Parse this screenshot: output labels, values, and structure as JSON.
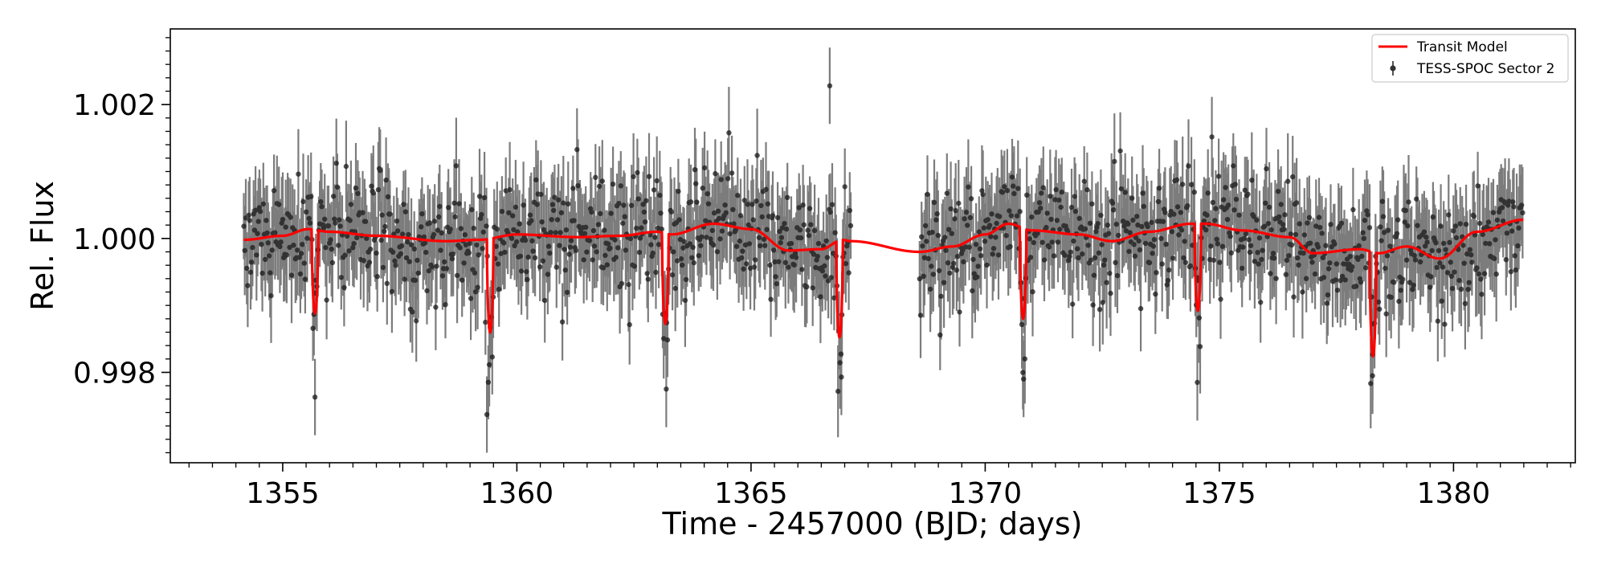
{
  "chart_data": {
    "type": "scatter",
    "title": "",
    "xlabel": "Time - 2457000 (BJD; days)",
    "ylabel": "Rel. Flux",
    "xlim": [
      1352.6,
      1382.6
    ],
    "ylim": [
      0.99665,
      1.00313
    ],
    "xticks": [
      1355,
      1360,
      1365,
      1370,
      1375,
      1380
    ],
    "xtick_labels": [
      "1355",
      "1360",
      "1365",
      "1370",
      "1375",
      "1380"
    ],
    "yticks": [
      0.998,
      1.0,
      1.002
    ],
    "ytick_labels": [
      "0.998",
      "1.000",
      "1.002"
    ],
    "xminor_step": 0.5,
    "yminor_step": 0.0002,
    "grid": false,
    "legend": {
      "placement": "top-right",
      "entries": [
        "Transit Model",
        "TESS-SPOC Sector 2"
      ]
    },
    "series": [
      {
        "name": "TESS-SPOC Sector 2",
        "kind": "errorbar",
        "color": "#333333",
        "segments": [
          [
            1354.17,
            1367.13
          ],
          [
            1368.6,
            1381.49
          ]
        ],
        "cadence_days": 0.0208,
        "typical_y_error": 0.0006,
        "scatter_sigma": 0.00042,
        "outliers": [
          {
            "x": 1355.69,
            "y": 0.99763
          },
          {
            "x": 1359.36,
            "y": 0.99737
          },
          {
            "x": 1363.19,
            "y": 0.99775
          },
          {
            "x": 1366.68,
            "y": 1.00228
          },
          {
            "x": 1366.93,
            "y": 0.99793
          },
          {
            "x": 1370.82,
            "y": 0.9979
          },
          {
            "x": 1374.53,
            "y": 0.99785
          },
          {
            "x": 1378.27,
            "y": 0.99795
          }
        ]
      },
      {
        "name": "Transit Model",
        "kind": "line",
        "color": "#ff0000",
        "baseline": {
          "x": [
            1354.17,
            1355.0,
            1355.55,
            1356.0,
            1357.0,
            1358.5,
            1359.2,
            1360.0,
            1361.3,
            1362.2,
            1363.0,
            1363.3,
            1364.2,
            1365.0,
            1365.8,
            1366.5,
            1366.95,
            1367.13,
            1368.6,
            1369.3,
            1370.0,
            1370.5,
            1371.0,
            1372.0,
            1372.7,
            1373.5,
            1374.4,
            1374.7,
            1375.5,
            1376.5,
            1377.0,
            1378.0,
            1378.4,
            1379.0,
            1379.7,
            1380.5,
            1381.49
          ],
          "y": [
            0.99998,
            1.00004,
            1.00014,
            1.0001,
            1.00004,
            0.99996,
            0.99998,
            1.00006,
            1.00002,
            1.00004,
            1.0001,
            1.00006,
            1.00022,
            1.00014,
            0.99982,
            0.99984,
            0.99998,
            0.99996,
            0.9998,
            0.99988,
            1.00006,
            1.00022,
            1.00012,
            1.00006,
            0.99996,
            1.0001,
            1.00022,
            1.00022,
            1.00012,
            1.00002,
            0.99978,
            0.99984,
            0.99978,
            0.99988,
            0.9997,
            1.0001,
            1.00028
          ]
        },
        "transits": [
          {
            "x": 1355.69,
            "depth": 0.00125
          },
          {
            "x": 1359.43,
            "depth": 0.0014
          },
          {
            "x": 1363.17,
            "depth": 0.00135
          },
          {
            "x": 1366.89,
            "depth": 0.00145
          },
          {
            "x": 1370.81,
            "depth": 0.00135
          },
          {
            "x": 1374.54,
            "depth": 0.0013
          },
          {
            "x": 1378.28,
            "depth": 0.00155
          }
        ],
        "transit_half_width_days": 0.07
      }
    ]
  }
}
